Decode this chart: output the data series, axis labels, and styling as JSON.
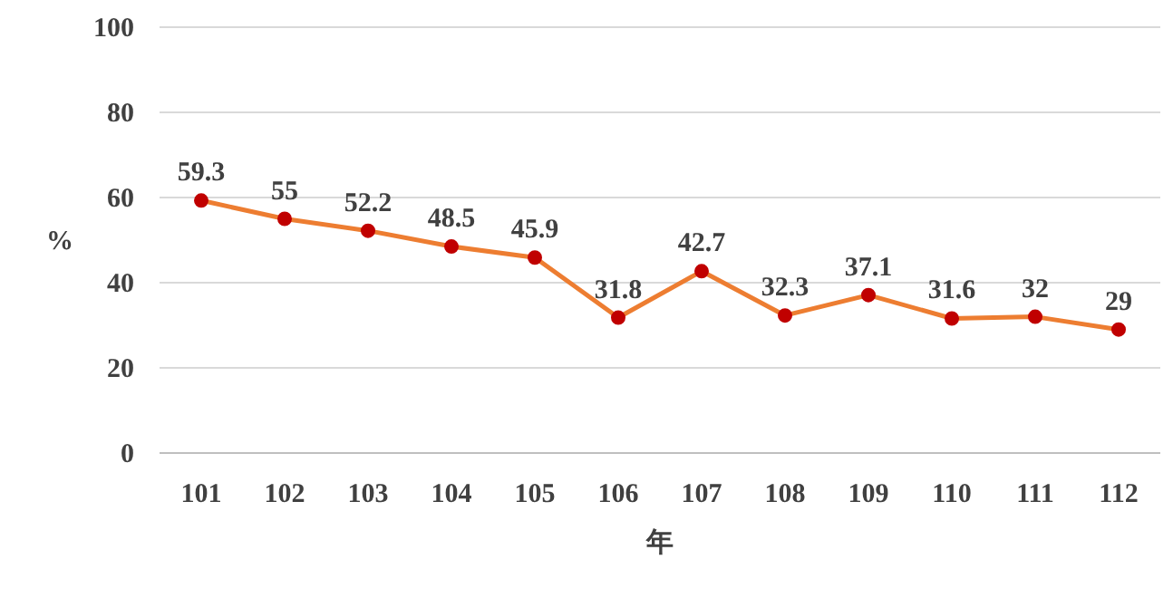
{
  "chart_data": {
    "type": "line",
    "xlabel": "年",
    "ylabel": "%",
    "categories": [
      "101",
      "102",
      "103",
      "104",
      "105",
      "106",
      "107",
      "108",
      "109",
      "110",
      "111",
      "112"
    ],
    "series": [
      {
        "color": "#ed7d31",
        "values": [
          59.3,
          55,
          52.2,
          48.5,
          45.9,
          31.8,
          42.7,
          32.3,
          37.1,
          31.6,
          32,
          29
        ]
      }
    ],
    "ylim": [
      0,
      100
    ],
    "yticks": [
      0,
      20,
      40,
      60,
      80,
      100
    ],
    "grid": "y",
    "marker": "circle",
    "line_style": "solid",
    "data_labels": true
  }
}
